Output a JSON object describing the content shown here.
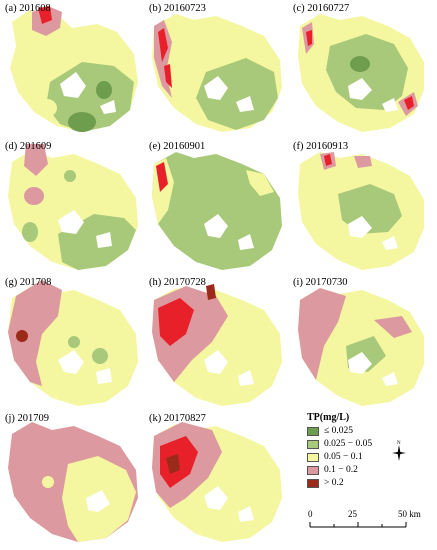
{
  "panels": [
    {
      "label": "(a) 201608"
    },
    {
      "label": "(b) 20160723"
    },
    {
      "label": "(c) 20160727"
    },
    {
      "label": "(d) 201609"
    },
    {
      "label": "(e) 20160901"
    },
    {
      "label": "(f) 20160913"
    },
    {
      "label": "(g) 201708"
    },
    {
      "label": "(h) 20170728"
    },
    {
      "label": "(i) 20170730"
    },
    {
      "label": "(j) 201709"
    },
    {
      "label": "(k) 20170827"
    }
  ],
  "legend": {
    "title": "TP(mg/L)",
    "items": [
      {
        "label": "≤ 0.025",
        "color": "#6f9d4e"
      },
      {
        "label": "0.025 − 0.05",
        "color": "#a8c97a"
      },
      {
        "label": "0.05 − 0.1",
        "color": "#f4f6a0"
      },
      {
        "label": "0.1 − 0.2",
        "color": "#dc9aa0"
      },
      {
        "label": "> 0.2",
        "color": "#9c2a1a"
      }
    ]
  },
  "north_arrow": {
    "label": "N"
  },
  "scale_bar": {
    "ticks": [
      "0",
      "25",
      "50 km"
    ]
  },
  "colors": {
    "red_hotspot": "#e8202a",
    "dark_green": "#6f9d4e",
    "light_green": "#a8c97a",
    "yellow": "#f4f6a0",
    "pink": "#dc9aa0",
    "dark_red": "#9c2a1a"
  }
}
